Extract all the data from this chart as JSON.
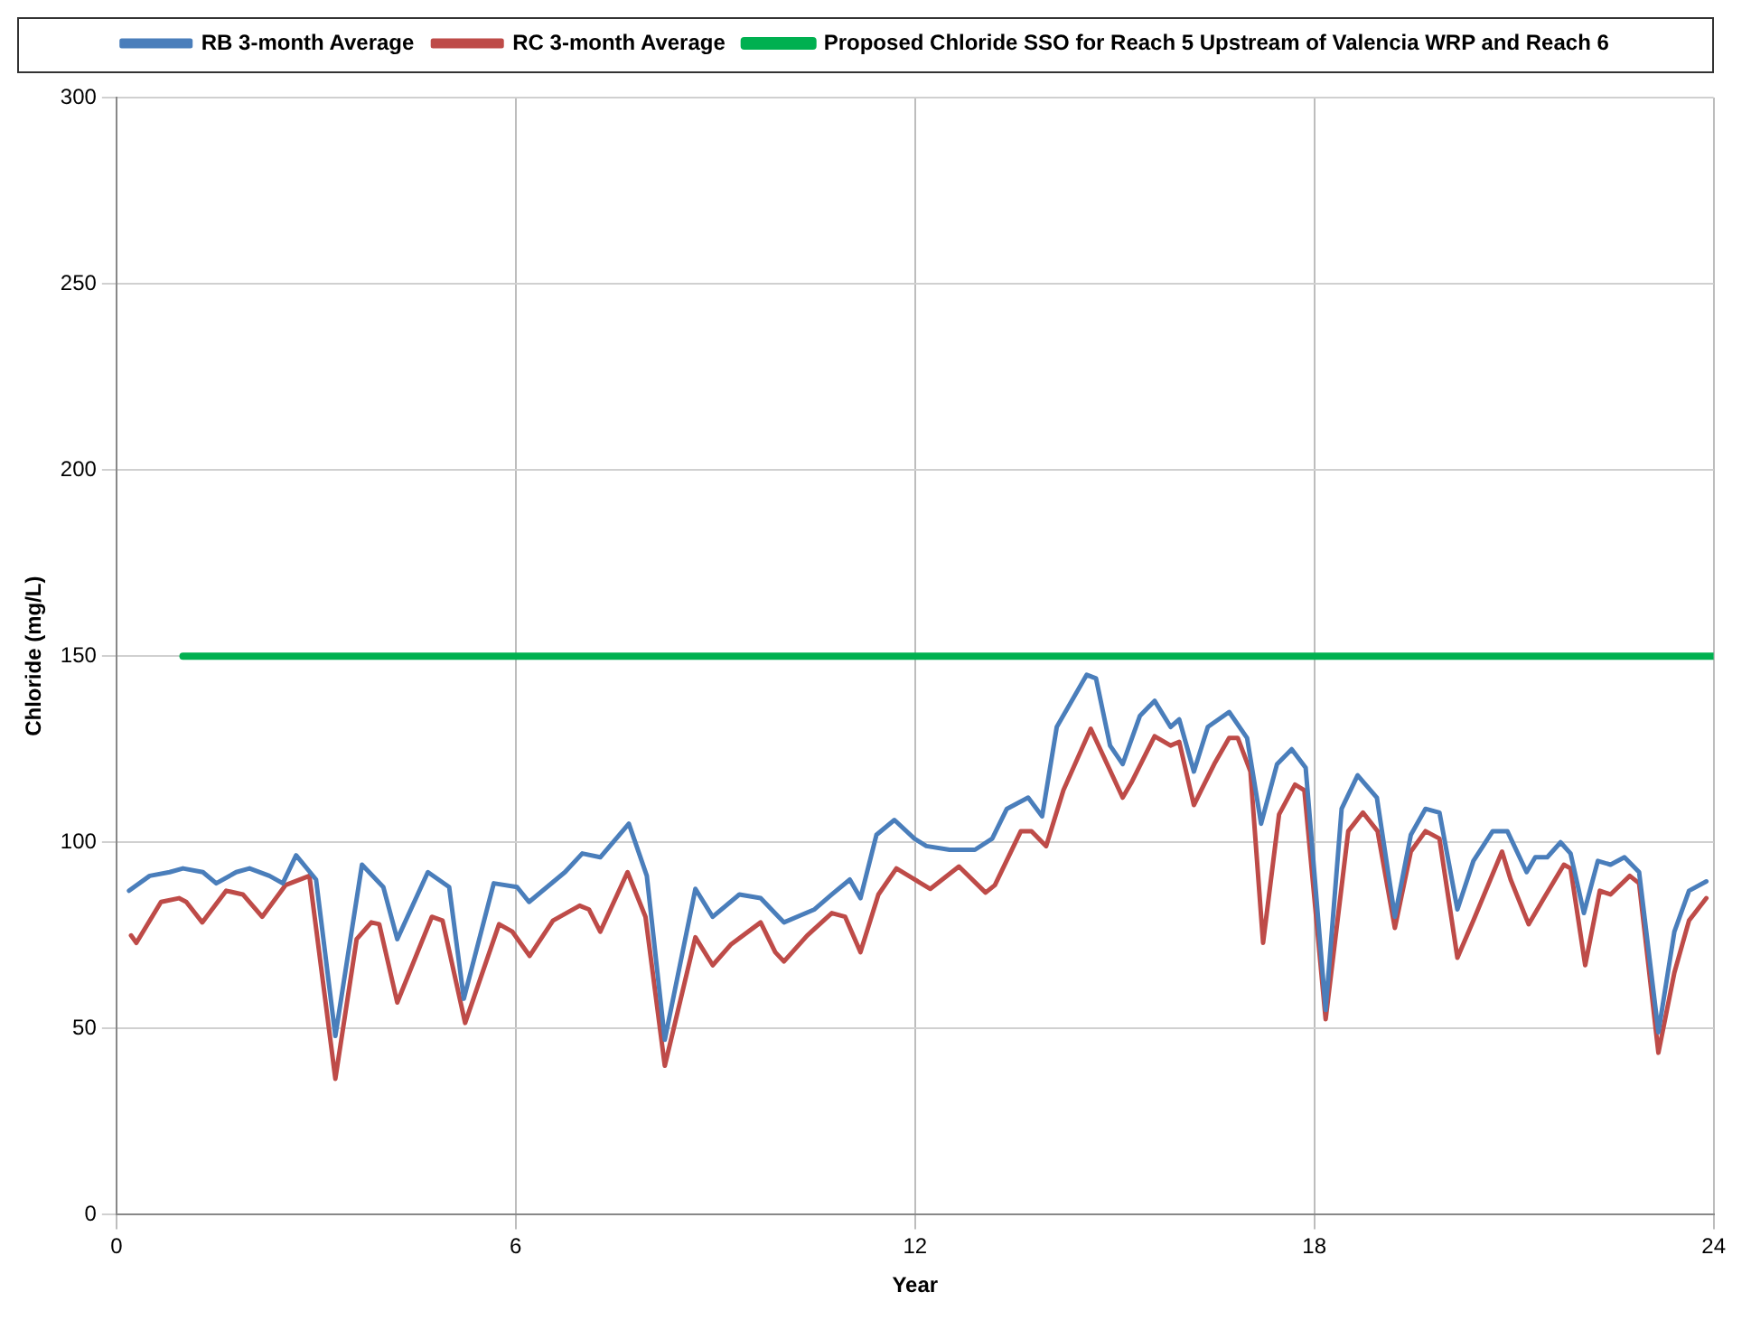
{
  "chart_data": {
    "type": "line",
    "xlabel": "Year",
    "ylabel": "Chloride (mg/L)",
    "xlim": [
      0,
      24
    ],
    "xticks": [
      0,
      6,
      12,
      18,
      24
    ],
    "ylim": [
      0,
      300
    ],
    "yticks": [
      0,
      50,
      100,
      150,
      200,
      250,
      300
    ],
    "grid": true,
    "legend": "top",
    "marker": "none",
    "line_style": "solid",
    "series": [
      {
        "name": "RB 3-month Average",
        "color": "#4a7ebb",
        "x": [
          0.19,
          0.5,
          0.8,
          1.0,
          1.3,
          1.5,
          1.8,
          2.0,
          2.3,
          2.5,
          2.7,
          3.0,
          3.29,
          3.69,
          4.01,
          4.22,
          4.68,
          5.0,
          5.22,
          5.67,
          6.02,
          6.2,
          6.74,
          7.0,
          7.27,
          7.7,
          7.97,
          8.24,
          8.7,
          8.96,
          9.36,
          9.68,
          10.03,
          10.49,
          10.75,
          11.02,
          11.18,
          11.42,
          11.69,
          11.99,
          12.17,
          12.52,
          12.9,
          13.16,
          13.38,
          13.7,
          13.91,
          14.13,
          14.58,
          14.72,
          14.93,
          15.12,
          15.38,
          15.6,
          15.84,
          15.97,
          16.19,
          16.4,
          16.72,
          16.99,
          17.2,
          17.44,
          17.66,
          17.87,
          18.17,
          18.41,
          18.65,
          18.94,
          19.21,
          19.45,
          19.67,
          19.88,
          20.15,
          20.39,
          20.68,
          20.9,
          21.19,
          21.32,
          21.5,
          21.7,
          21.85,
          22.05,
          22.26,
          22.45,
          22.66,
          22.88,
          23.17,
          23.41,
          23.63,
          23.89
        ],
        "values": [
          87,
          91,
          92,
          93,
          92,
          89,
          92,
          93,
          91,
          89,
          96.5,
          90,
          48,
          94,
          88,
          74,
          92,
          88,
          58,
          89,
          88,
          84,
          92,
          97,
          96,
          105,
          91,
          47,
          87.5,
          80,
          86,
          85,
          78.5,
          82,
          86,
          90,
          85,
          102,
          106,
          101,
          99,
          98,
          98,
          101,
          109,
          112,
          107,
          131,
          145,
          144,
          126,
          121,
          134,
          138,
          131,
          133,
          119,
          131,
          135,
          128,
          105,
          121,
          125,
          120,
          55,
          109,
          118,
          112,
          80,
          102,
          109,
          108,
          82,
          95,
          103,
          103,
          92,
          96,
          96,
          100,
          97,
          81,
          95,
          94,
          96,
          92,
          49,
          76,
          87,
          89.5
        ]
      },
      {
        "name": "RC 3-month Average",
        "color": "#be4b48",
        "x": [
          0.22,
          0.3,
          0.67,
          0.94,
          1.05,
          1.29,
          1.65,
          1.9,
          2.19,
          2.54,
          2.9,
          3.29,
          3.61,
          3.83,
          3.95,
          4.22,
          4.74,
          4.9,
          5.24,
          5.75,
          5.95,
          6.21,
          6.56,
          6.96,
          7.1,
          7.27,
          7.68,
          7.95,
          8.24,
          8.7,
          8.96,
          9.23,
          9.68,
          9.9,
          10.03,
          10.38,
          10.75,
          10.95,
          11.18,
          11.45,
          11.72,
          11.95,
          12.23,
          12.66,
          13.06,
          13.2,
          13.59,
          13.75,
          13.97,
          14.23,
          14.64,
          15.12,
          15.25,
          15.6,
          15.84,
          15.97,
          16.19,
          16.3,
          16.51,
          16.72,
          16.85,
          17.04,
          17.23,
          17.47,
          17.71,
          17.85,
          18.17,
          18.51,
          18.73,
          18.95,
          19.21,
          19.45,
          19.67,
          19.88,
          20.15,
          20.39,
          20.82,
          20.95,
          21.22,
          21.45,
          21.75,
          21.85,
          22.07,
          22.29,
          22.45,
          22.74,
          22.88,
          23.17,
          23.41,
          23.63,
          23.89
        ],
        "values": [
          75,
          73,
          84,
          85,
          84,
          78.5,
          87,
          86,
          80,
          88.5,
          91,
          36.5,
          74,
          78.5,
          78,
          57,
          80,
          79,
          51.5,
          78,
          76,
          69.5,
          79,
          83,
          82,
          76,
          92,
          80,
          40,
          74.5,
          67,
          72.5,
          78.5,
          70.5,
          68,
          75,
          81,
          80,
          70.5,
          86,
          93,
          90.5,
          87.5,
          93.5,
          86.5,
          88.5,
          103,
          103,
          99,
          114,
          130.5,
          112,
          116,
          128.5,
          126,
          127,
          110,
          114,
          121.5,
          128,
          128,
          119,
          73,
          107.5,
          115.5,
          114,
          52.5,
          103,
          108,
          103,
          77,
          97.5,
          103,
          101,
          69,
          79,
          97.5,
          90,
          78,
          85,
          94,
          93,
          67,
          87,
          86,
          91,
          89,
          43.5,
          65,
          79,
          85
        ]
      },
      {
        "name": "Proposed Chloride SSO for Reach 5 Upstream of Valencia WRP and Reach 6",
        "color": "#00b050",
        "x": [
          1,
          24
        ],
        "values": [
          150,
          150
        ]
      }
    ]
  }
}
